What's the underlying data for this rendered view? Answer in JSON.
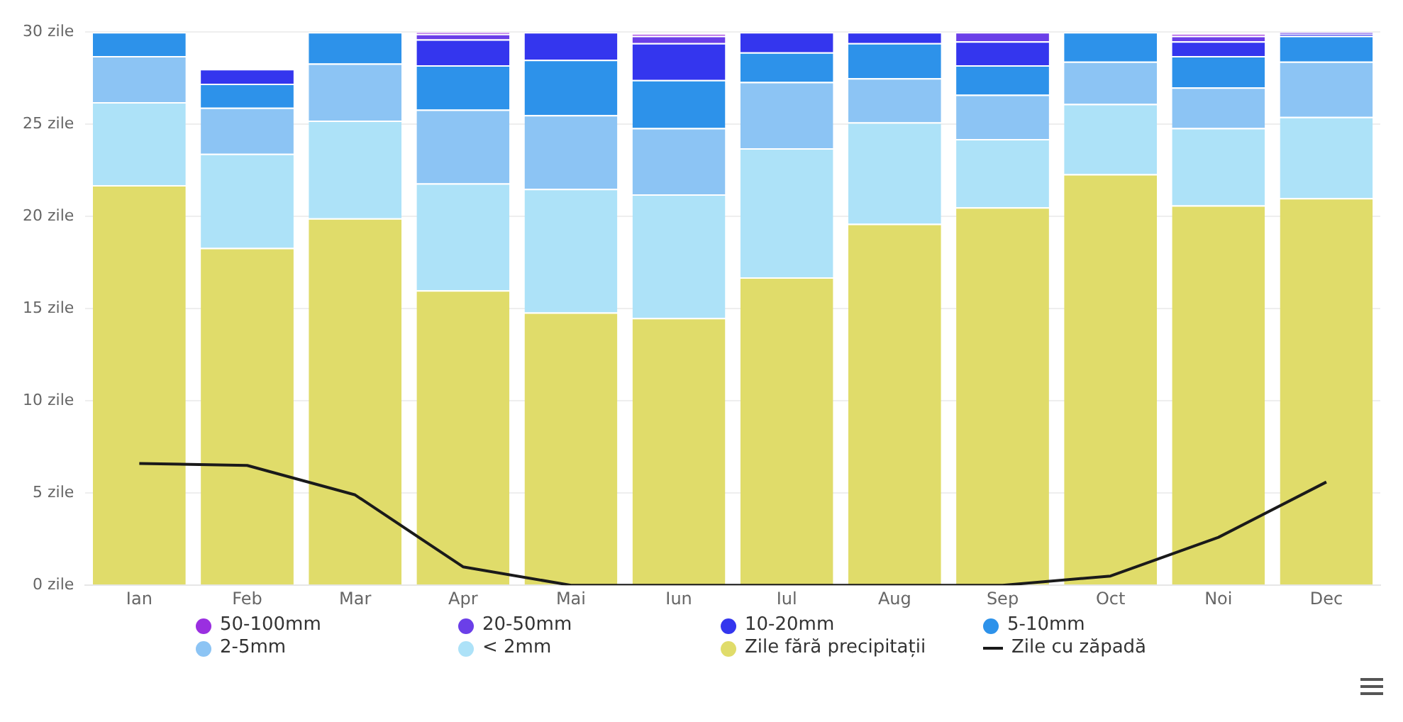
{
  "chart_data": {
    "type": "bar",
    "stacked": true,
    "categories": [
      "Ian",
      "Feb",
      "Mar",
      "Apr",
      "Mai",
      "Iun",
      "Iul",
      "Aug",
      "Sep",
      "Oct",
      "Noi",
      "Dec"
    ],
    "series": [
      {
        "name": "Zile fără precipitații",
        "color": "#e0dc6a",
        "values": [
          21.7,
          18.3,
          19.9,
          16.0,
          14.8,
          14.5,
          16.7,
          19.6,
          20.5,
          22.3,
          20.6,
          21.0
        ]
      },
      {
        "name": "< 2mm",
        "color": "#ade2f8",
        "values": [
          4.5,
          5.1,
          5.3,
          5.8,
          6.7,
          6.7,
          7.0,
          5.5,
          3.7,
          3.8,
          4.2,
          4.4
        ]
      },
      {
        "name": "2-5mm",
        "color": "#8cc4f4",
        "values": [
          2.5,
          2.5,
          3.1,
          4.0,
          4.0,
          3.6,
          3.6,
          2.4,
          2.4,
          2.3,
          2.2,
          3.0
        ]
      },
      {
        "name": "5-10mm",
        "color": "#2d92ea",
        "values": [
          1.3,
          1.3,
          1.7,
          2.4,
          3.0,
          2.6,
          1.6,
          1.9,
          1.6,
          1.6,
          1.7,
          1.4
        ]
      },
      {
        "name": "10-20mm",
        "color": "#3436ee",
        "values": [
          null,
          0.8,
          null,
          1.4,
          1.5,
          2.0,
          1.1,
          0.6,
          1.3,
          null,
          0.8,
          0.1
        ]
      },
      {
        "name": "20-50mm",
        "color": "#6b3fe8",
        "values": [
          null,
          null,
          null,
          0.3,
          null,
          0.4,
          null,
          null,
          0.5,
          null,
          0.3,
          0.1
        ]
      },
      {
        "name": "50-100mm",
        "color": "#9a2fe0",
        "values": [
          null,
          null,
          null,
          0.1,
          null,
          0.1,
          null,
          null,
          null,
          null,
          0.1,
          null
        ]
      },
      {
        "name": "Zile cu zăpadă",
        "type": "line",
        "color": "#1a1a1a",
        "marker": "none",
        "values": [
          6.6,
          6.5,
          4.9,
          1.0,
          0,
          0,
          0,
          0,
          0,
          0.5,
          2.6,
          5.6
        ]
      }
    ],
    "ylim": [
      0,
      30
    ],
    "yticks": [
      {
        "value": 0,
        "label": "0 zile"
      },
      {
        "value": 5,
        "label": "5 zile"
      },
      {
        "value": 10,
        "label": "10 zile"
      },
      {
        "value": 15,
        "label": "15 zile"
      },
      {
        "value": 20,
        "label": "20 zile"
      },
      {
        "value": 25,
        "label": "25 zile"
      },
      {
        "value": 30,
        "label": "30 zile"
      }
    ],
    "grid": "y",
    "legend": "bottom"
  }
}
